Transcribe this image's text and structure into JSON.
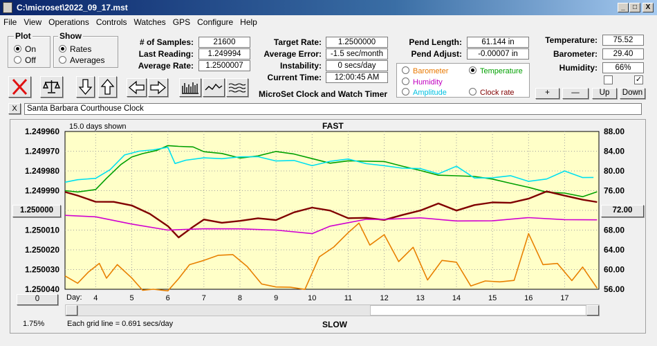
{
  "window": {
    "title": "C:\\microset\\2022_09_17.mst",
    "min": "_",
    "max": "□",
    "close": "X"
  },
  "menu": [
    "File",
    "View",
    "Operations",
    "Controls",
    "Watches",
    "GPS",
    "Configure",
    "Help"
  ],
  "plot_group": {
    "title": "Plot",
    "options": [
      "On",
      "Off"
    ],
    "selected": "On"
  },
  "show_group": {
    "title": "Show",
    "options": [
      "Rates",
      "Averages"
    ],
    "selected": "Rates"
  },
  "stats": {
    "samples_label": "# of Samples:",
    "samples": "21600",
    "last_reading_label": "Last Reading:",
    "last_reading": "1.249994",
    "average_rate_label": "Average Rate:",
    "average_rate": "1.2500007",
    "target_rate_label": "Target Rate:",
    "target_rate": "1.2500000",
    "average_error_label": "Average Error:",
    "average_error": "-1.5 sec/month",
    "instability_label": "Instability:",
    "instability": "0 secs/day",
    "current_time_label": "Current Time:",
    "current_time": "12:00:45 AM",
    "pend_length_label": "Pend Length:",
    "pend_length": "61.144 in",
    "pend_adjust_label": "Pend Adjust:",
    "pend_adjust": "-0.00007 in",
    "temperature_label": "Temperature:",
    "temperature": "75.52",
    "barometer_label": "Barometer:",
    "barometer": "29.40",
    "humidity_label": "Humidity:",
    "humidity": "66%"
  },
  "app_caption": "MicroSet Clock and Watch Timer",
  "overlay_group": {
    "options": [
      {
        "label": "Barometer",
        "color": "#e87800",
        "selected": false
      },
      {
        "label": "Temperature",
        "color": "#00a000",
        "selected": true
      },
      {
        "label": "Humidity",
        "color": "#c000c0",
        "selected": false
      },
      {
        "label": "Amplitude",
        "color": "#00c0e0",
        "selected": false
      },
      {
        "label": "Clock rate",
        "color": "#800000",
        "selected": false
      }
    ]
  },
  "buttons": {
    "plus": "+",
    "minus": "—",
    "up": "Up",
    "down": "Down",
    "close_x": "X",
    "zero": "0",
    "rate_center": "1.250000",
    "temp_center": "72.00"
  },
  "description": "Santa Barbara Courthouse Clock",
  "chart_data": {
    "type": "line",
    "top_label": "FAST",
    "bottom_label": "SLOW",
    "days_shown": "15.0 days shown",
    "grid_note": "Each grid line = 0.691 secs/day",
    "footer_left": "1.75%",
    "day_prefix": "Day:",
    "x_ticks": [
      4,
      5,
      6,
      7,
      8,
      9,
      10,
      11,
      12,
      13,
      14,
      15,
      16,
      17
    ],
    "xlim": [
      3.15,
      17.95
    ],
    "y_left_ticks": [
      "1.249960",
      "1.249970",
      "1.249980",
      "1.249990",
      "1.250000",
      "1.250010",
      "1.250020",
      "1.250030",
      "1.250040"
    ],
    "y_right_ticks": [
      "88.00",
      "84.00",
      "80.00",
      "76.00",
      "72.00",
      "68.00",
      "64.00",
      "60.00",
      "56.00"
    ],
    "y_right_range": [
      56,
      88
    ],
    "series": [
      {
        "name": "Temperature",
        "color": "#00a000",
        "x": [
          3.15,
          3.5,
          4,
          4.3,
          4.7,
          5,
          5.3,
          5.7,
          6,
          6.3,
          6.7,
          7,
          7.5,
          8,
          8.5,
          9,
          9.5,
          10,
          10.5,
          11,
          11.5,
          12,
          12.5,
          13,
          13.5,
          14,
          14.5,
          15,
          15.5,
          16,
          16.5,
          17,
          17.5,
          17.9
        ],
        "y": [
          76.5,
          76.0,
          76.0,
          78.0,
          81.0,
          83.0,
          84.0,
          84.5,
          85.0,
          84.5,
          84.5,
          84.0,
          84.0,
          83.0,
          83.0,
          83.5,
          83.0,
          82.5,
          82.0,
          82.5,
          82.0,
          81.5,
          80.5,
          80.0,
          79.5,
          79.5,
          79.0,
          78.0,
          77.0,
          76.5,
          76.0,
          76.0,
          75.0,
          75.5
        ]
      },
      {
        "name": "Amplitude",
        "color": "#00e0f0",
        "x": [
          3.15,
          3.5,
          4,
          4.4,
          4.8,
          5.2,
          5.6,
          6,
          6.2,
          6.5,
          7,
          7.5,
          8,
          8.5,
          9,
          9.5,
          10,
          10.5,
          11,
          11.5,
          12,
          12.5,
          13,
          13.5,
          14,
          14.5,
          15,
          15.5,
          16,
          16.5,
          17,
          17.5,
          17.8
        ],
        "y": [
          77.5,
          78.5,
          79.0,
          80.5,
          83.0,
          83.5,
          84.0,
          85.0,
          82.0,
          82.5,
          82.5,
          82.0,
          82.5,
          83.0,
          82.5,
          82.5,
          81.0,
          81.5,
          82.0,
          81.5,
          81.5,
          81.0,
          80.5,
          79.0,
          80.5,
          78.5,
          79.0,
          79.5,
          78.0,
          78.0,
          79.5,
          78.5,
          79.0
        ]
      },
      {
        "name": "Clock rate",
        "color": "#800000",
        "x": [
          3.15,
          3.5,
          4,
          4.5,
          5,
          5.5,
          6,
          6.3,
          6.7,
          7,
          7.5,
          8,
          8.5,
          9,
          9.5,
          10,
          10.5,
          11,
          11.5,
          12,
          12.5,
          13,
          13.5,
          14,
          14.5,
          15,
          15.5,
          16,
          16.5,
          17,
          17.5,
          17.9
        ],
        "y": [
          76.0,
          75.5,
          74.0,
          73.5,
          72.5,
          71.0,
          69.0,
          67.0,
          69.0,
          70.0,
          69.0,
          69.5,
          70.5,
          70.5,
          72.0,
          72.5,
          71.5,
          70.0,
          70.5,
          70.5,
          71.5,
          72.0,
          73.0,
          71.5,
          73.0,
          74.0,
          74.0,
          74.5,
          75.5,
          74.5,
          74.0,
          74.0
        ]
      },
      {
        "name": "Humidity",
        "color": "#d000d0",
        "x": [
          3.15,
          4,
          5,
          6,
          7,
          8,
          9,
          10,
          10.5,
          11,
          11.5,
          12,
          13,
          14,
          15,
          16,
          17,
          17.9
        ],
        "y": [
          70.5,
          70.5,
          69.5,
          68.5,
          68.5,
          68.0,
          67.5,
          67.0,
          69.0,
          70.0,
          70.5,
          70.0,
          70.0,
          69.5,
          70.0,
          71.0,
          70.5,
          70.0
        ]
      },
      {
        "name": "Barometer",
        "color": "#e88000",
        "x": [
          3.15,
          3.5,
          3.8,
          4.1,
          4.3,
          4.6,
          5,
          5.3,
          5.6,
          6,
          6.3,
          6.6,
          7,
          7.4,
          7.8,
          8.2,
          8.6,
          9,
          9.4,
          9.8,
          10.2,
          10.6,
          11,
          11.3,
          11.6,
          12,
          12.4,
          12.8,
          13.2,
          13.6,
          14,
          14.4,
          14.8,
          15.2,
          15.6,
          16,
          16.4,
          16.8,
          17.2,
          17.5,
          17.9
        ],
        "y": [
          58.5,
          57.5,
          60.0,
          61.5,
          58.0,
          60.5,
          58.0,
          56.0,
          56.5,
          56.0,
          58.0,
          60.5,
          61.5,
          63.0,
          63.5,
          61.0,
          57.0,
          56.0,
          56.0,
          56.0,
          63.0,
          65.0,
          67.5,
          69.0,
          64.5,
          67.0,
          62.0,
          65.0,
          58.0,
          61.5,
          61.0,
          56.5,
          58.0,
          58.0,
          58.0,
          67.0,
          60.5,
          61.0,
          58.0,
          61.0,
          56.5
        ]
      }
    ]
  }
}
